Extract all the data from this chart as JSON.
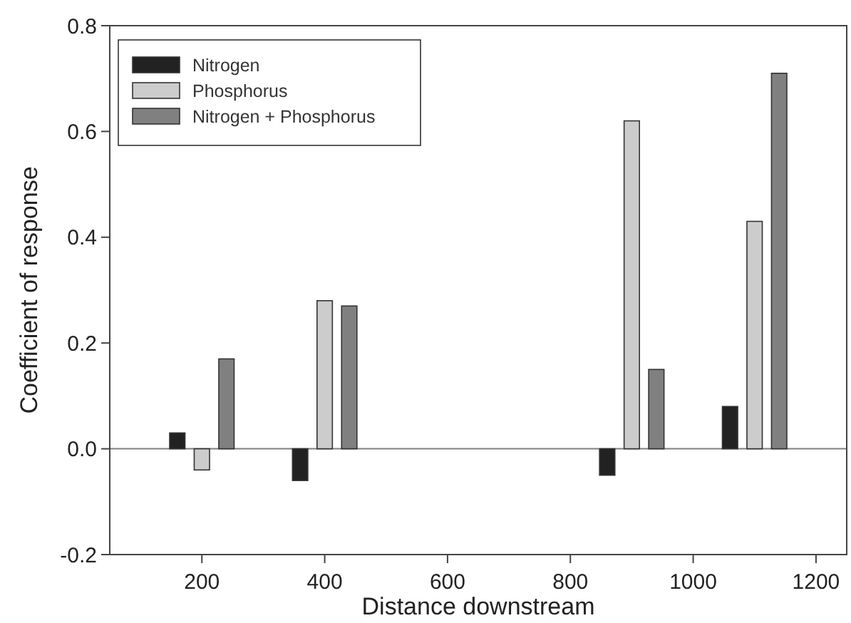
{
  "chart_data": {
    "type": "bar",
    "xlabel": "Distance downstream",
    "ylabel": "Coefficient of response",
    "xlim": [
      50,
      1250
    ],
    "xticks": [
      200,
      400,
      600,
      800,
      1000,
      1200
    ],
    "ylim": [
      -0.2,
      0.8
    ],
    "yticks": [
      {
        "value": -0.2,
        "label": "-0.2"
      },
      {
        "value": 0,
        "label": "0.0"
      },
      {
        "value": 0.2,
        "label": "0.2"
      },
      {
        "value": 0.4,
        "label": "0.4"
      },
      {
        "value": 0.6,
        "label": "0.6"
      },
      {
        "value": 0.8,
        "label": "0.8"
      }
    ],
    "series": [
      {
        "name": "Nitrogen",
        "color": "#222222",
        "x": [
          160,
          360,
          860,
          1060
        ],
        "values": [
          0.03,
          -0.06,
          -0.05,
          0.08
        ]
      },
      {
        "name": "Phosphorus",
        "color": "#cccccc",
        "x": [
          200,
          400,
          900,
          1100
        ],
        "values": [
          -0.04,
          0.28,
          0.62,
          0.43
        ]
      },
      {
        "name": "Nitrogen + Phosphorus",
        "color": "#808080",
        "x": [
          240,
          440,
          940,
          1140
        ],
        "values": [
          0.17,
          0.27,
          0.15,
          0.71
        ]
      }
    ],
    "ref_lines": [
      {
        "axis": "y",
        "value": 0,
        "color": "#808080"
      }
    ],
    "legend": "top left",
    "grid": false
  }
}
